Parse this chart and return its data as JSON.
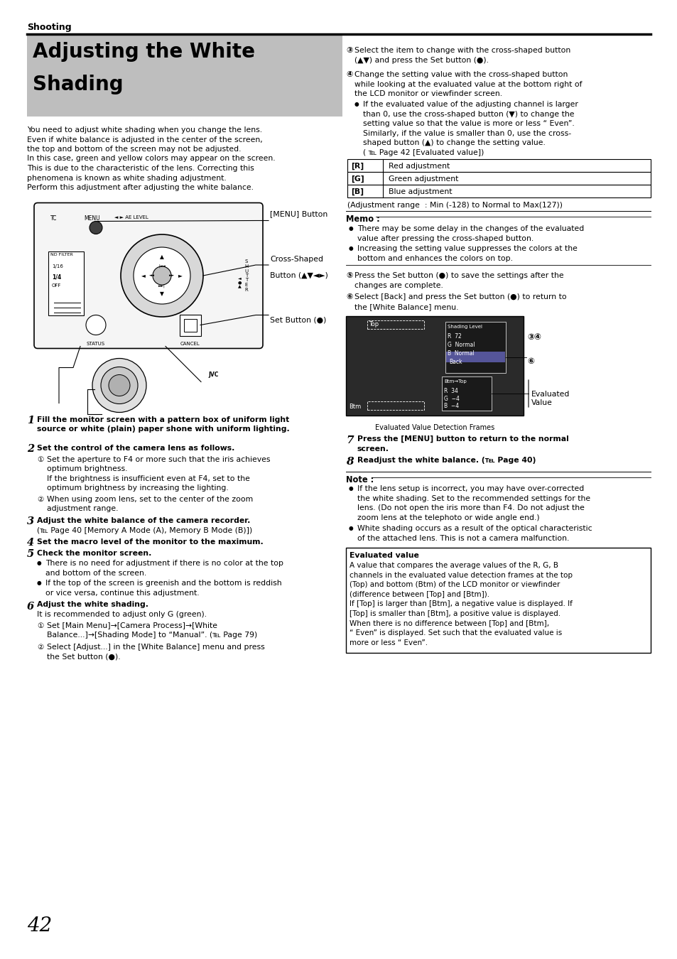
{
  "page_number": "42",
  "section_header": "Shooting",
  "title_line1": "Adjusting the White",
  "title_line2": "Shading",
  "title_bg_color": "#bebebe",
  "bg_color": "#ffffff",
  "text_color": "#000000",
  "intro_lines": [
    "You need to adjust white shading when you change the lens.",
    "Even if white balance is adjusted in the center of the screen,",
    "the top and bottom of the screen may not be adjusted.",
    "In this case, green and yellow colors may appear on the screen.",
    "This is due to the characteristic of the lens. Correcting this",
    "phenomena is known as white shading adjustment.",
    "Perform this adjustment after adjusting the white balance."
  ],
  "step1_num": "1",
  "step1_text": "Fill the monitor screen with a pattern box of uniform light\nsource or white (plain) paper shone with uniform lighting.",
  "step2_num": "2",
  "step2_text": "Set the control of the camera lens as follows.",
  "step2_sub1_num": "1",
  "step2_sub1_text": "Set the aperture to F4 or more such that the iris achieves\noptimum brightness.\nIf the brightness is insufficient even at F4, set to the\noptimum brightness by increasing the lighting.",
  "step2_sub2_num": "2",
  "step2_sub2_text": "When using zoom lens, set to the center of the zoom\nadjustment range.",
  "step3_num": "3",
  "step3_text": "Adjust the white balance of the camera recorder.",
  "step3_ref": "(℡ Page 40 [Memory A Mode (A), Memory B Mode (B)])",
  "step4_num": "4",
  "step4_text": "Set the macro level of the monitor to the maximum.",
  "step5_num": "5",
  "step5_text": "Check the monitor screen.",
  "step5_b1": "There is no need for adjustment if there is no color at the top\nand bottom of the screen.",
  "step5_b2": "If the top of the screen is greenish and the bottom is reddish\nor vice versa, continue this adjustment.",
  "step6_num": "6",
  "step6_text": "Adjust the white shading.",
  "step6_sub": "It is recommended to adjust only G (green).",
  "step6_1_num": "1",
  "step6_1_text": "Set [Main Menu]→[Camera Process]→[White\nBalance...]→[Shading Mode] to “Manual”. (℡ Page 79)",
  "step6_2_num": "2",
  "step6_2_text": "Select [Adjust...] in the [White Balance] menu and press\nthe Set button (●).",
  "r3_num": "3",
  "r3_text_a": "Select the item to change with the cross-shaped button",
  "r3_text_b": "(▲▼) and press the Set button (●).",
  "r4_num": "4",
  "r4_text": "Change the setting value with the cross-shaped button\nwhile looking at the evaluated value at the bottom right of\nthe LCD monitor or viewfinder screen.",
  "r4_b1": "If the evaluated value of the adjusting channel is larger\nthan 0, use the cross-shaped button (▼) to change the\nsetting value so that the value is more or less “ Even”.\nSimilarly, if the value is smaller than 0, use the cross-\nshaped button (▲) to change the setting value.\n( ℡ Page 42 [Evaluated value])",
  "table_rows": [
    [
      "[R]",
      "Red adjustment"
    ],
    [
      "[G]",
      "Green adjustment"
    ],
    [
      "[B]",
      "Blue adjustment"
    ]
  ],
  "table_note": "(Adjustment range  : Min (-128) to Normal to Max(127))",
  "memo_header": "Memo :",
  "memo_b1": "There may be some delay in the changes of the evaluated\nvalue after pressing the cross-shaped button.",
  "memo_b2": "Increasing the setting value suppresses the colors at the\nbottom and enhances the colors on top.",
  "r5_num": "5",
  "r5_text": "Press the Set button (●) to save the settings after the\nchanges are complete.",
  "r6_num": "6",
  "r6_text": "Select [Back] and press the Set button (●) to return to\nthe [White Balance] menu.",
  "eval_det_label": "Evaluated Value Detection Frames",
  "step7_num": "7",
  "step7_text": "Press the [MENU] button to return to the normal\nscreen.",
  "step8_num": "8",
  "step8_text": "Readjust the white balance. (℡ Page 40)",
  "note_header": "Note :",
  "note_b1": "If the lens setup is incorrect, you may have over-corrected\nthe white shading. Set to the recommended settings for the\nlens. (Do not open the iris more than F4. Do not adjust the\nzoom lens at the telephoto or wide angle end.)",
  "note_b2": "White shading occurs as a result of the optical characteristic\nof the attached lens. This is not a camera malfunction.",
  "eval_box_header": "Evaluated value",
  "eval_box_text": "A value that compares the average values of the R, G, B\nchannels in the evaluated value detection frames at the top\n(Top) and bottom (Btm) of the LCD monitor or viewfinder\n(difference between [Top] and [Btm]).\nIf [Top] is larger than [Btm], a negative value is displayed. If\n[Top] is smaller than [Btm], a positive value is displayed.\nWhen there is no difference between [Top] and [Btm],\n“ Even” is displayed. Set such that the evaluated value is\nmore or less “ Even”."
}
